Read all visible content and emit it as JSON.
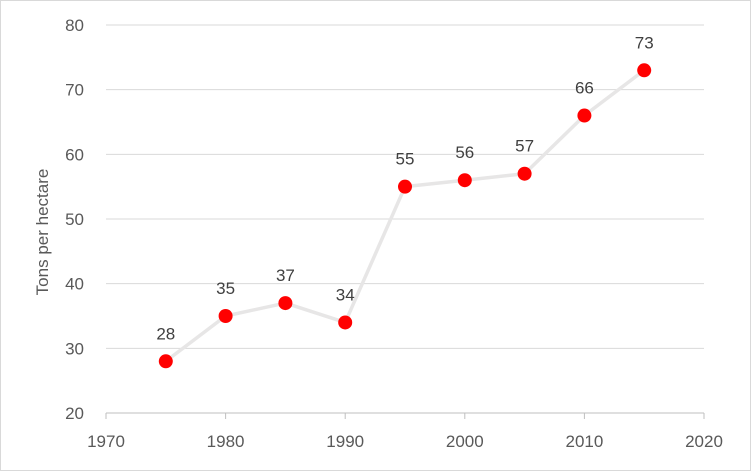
{
  "chart_data": {
    "type": "line",
    "title": "",
    "xlabel": "",
    "ylabel": "Tons per hectare",
    "xlim": [
      1970,
      2020
    ],
    "ylim": [
      20,
      80
    ],
    "x_ticks": [
      1970,
      1980,
      1990,
      2000,
      2010,
      2020
    ],
    "y_ticks": [
      20,
      30,
      40,
      50,
      60,
      70,
      80
    ],
    "grid": true,
    "legend": "none",
    "series": [
      {
        "x": [
          1975,
          1980,
          1985,
          1990,
          1995,
          2000,
          2005,
          2010,
          2015
        ],
        "values": [
          28,
          35,
          37,
          34,
          55,
          56,
          57,
          66,
          73
        ],
        "line_color": "#e7e6e6",
        "marker_color": "#ff0000"
      }
    ]
  }
}
